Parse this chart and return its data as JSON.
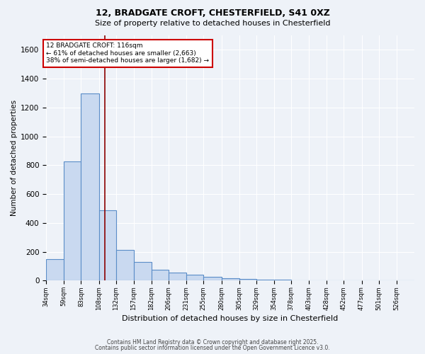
{
  "title1": "12, BRADGATE CROFT, CHESTERFIELD, S41 0XZ",
  "title2": "Size of property relative to detached houses in Chesterfield",
  "xlabel": "Distribution of detached houses by size in Chesterfield",
  "ylabel": "Number of detached properties",
  "bar_color": "#c9d9f0",
  "bar_edge_color": "#5b8dc8",
  "vline_color": "#8b0000",
  "vline_x": 116,
  "annotation_text": "12 BRADGATE CROFT: 116sqm\n← 61% of detached houses are smaller (2,663)\n38% of semi-detached houses are larger (1,682) →",
  "annotation_box_color": "#ffffff",
  "annotation_box_edge": "#cc0000",
  "bins": [
    34,
    59,
    83,
    108,
    132,
    157,
    182,
    206,
    231,
    255,
    280,
    305,
    329,
    354,
    378,
    403,
    428,
    452,
    477,
    501,
    526,
    551
  ],
  "bin_labels": [
    "34sqm",
    "59sqm",
    "83sqm",
    "108sqm",
    "132sqm",
    "157sqm",
    "182sqm",
    "206sqm",
    "231sqm",
    "255sqm",
    "280sqm",
    "305sqm",
    "329sqm",
    "354sqm",
    "378sqm",
    "403sqm",
    "428sqm",
    "452sqm",
    "477sqm",
    "501sqm",
    "526sqm"
  ],
  "values": [
    150,
    825,
    1300,
    490,
    215,
    130,
    75,
    55,
    40,
    25,
    18,
    10,
    6,
    5,
    4,
    3,
    2,
    2,
    1,
    1,
    1
  ],
  "ylim": [
    0,
    1700
  ],
  "yticks": [
    0,
    200,
    400,
    600,
    800,
    1000,
    1200,
    1400,
    1600
  ],
  "background_color": "#eef2f8",
  "grid_color": "#ffffff",
  "footer1": "Contains HM Land Registry data © Crown copyright and database right 2025.",
  "footer2": "Contains public sector information licensed under the Open Government Licence v3.0."
}
